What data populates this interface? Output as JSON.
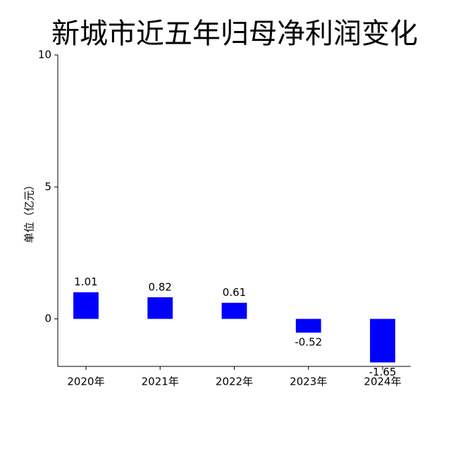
{
  "chart_data": {
    "type": "bar",
    "title": "新城市近五年归母净利润变化",
    "y_label": "单位（亿元）",
    "categories": [
      "2020年",
      "2021年",
      "2022年",
      "2023年",
      "2024年"
    ],
    "values": [
      1.01,
      0.82,
      0.61,
      -0.52,
      -1.65
    ],
    "color": "#0000ff",
    "ylim": [
      -1.8,
      10
    ],
    "yticks": [
      0,
      5,
      10
    ],
    "grid": false
  }
}
